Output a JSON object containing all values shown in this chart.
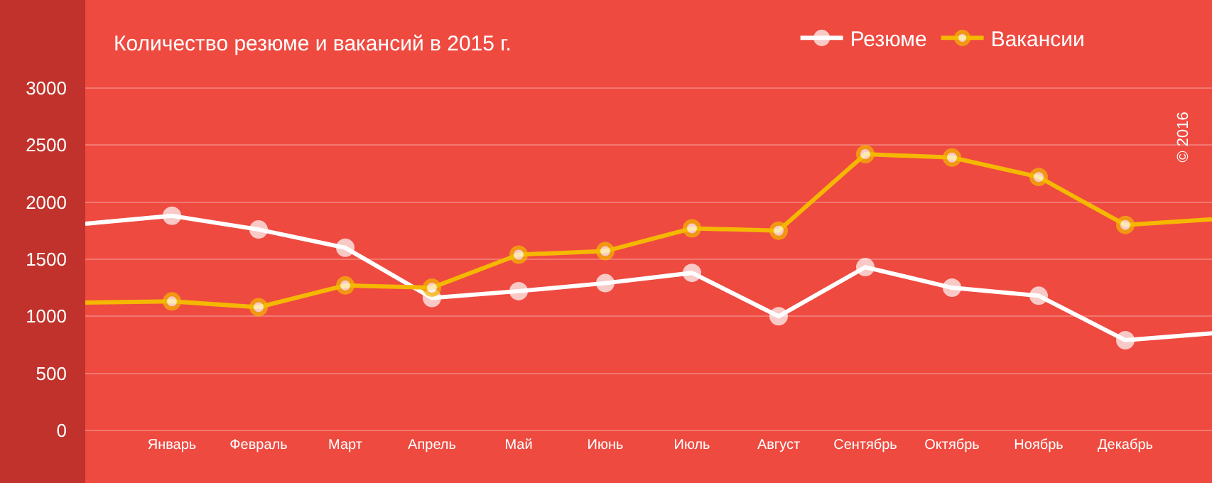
{
  "chart_data": {
    "type": "line",
    "title": "Количество резюме и вакансий в 2015 г.",
    "categories": [
      null,
      "Январь",
      "Февраль",
      "Март",
      "Апрель",
      "Май",
      "Июнь",
      "Июль",
      "Август",
      "Сентябрь",
      "Октябрь",
      "Ноябрь",
      "Декабрь",
      null
    ],
    "series": [
      {
        "name": "Резюме",
        "color": "#ffffff",
        "values": [
          1810,
          1880,
          1760,
          1600,
          1160,
          1220,
          1290,
          1380,
          1000,
          1430,
          1250,
          1180,
          790,
          850
        ]
      },
      {
        "name": "Вакансии",
        "color": "#f5b800",
        "values": [
          1120,
          1130,
          1080,
          1270,
          1250,
          1540,
          1570,
          1770,
          1750,
          2420,
          2390,
          2220,
          1800,
          1850
        ]
      }
    ],
    "ylim": [
      -25,
      3770
    ],
    "yticks": [
      0,
      500,
      1000,
      1500,
      2000,
      2500,
      3000
    ],
    "grid": "y",
    "legend": "top right",
    "marker": "circle",
    "line_style": "solid",
    "annotations": [
      "© 2016"
    ]
  }
}
